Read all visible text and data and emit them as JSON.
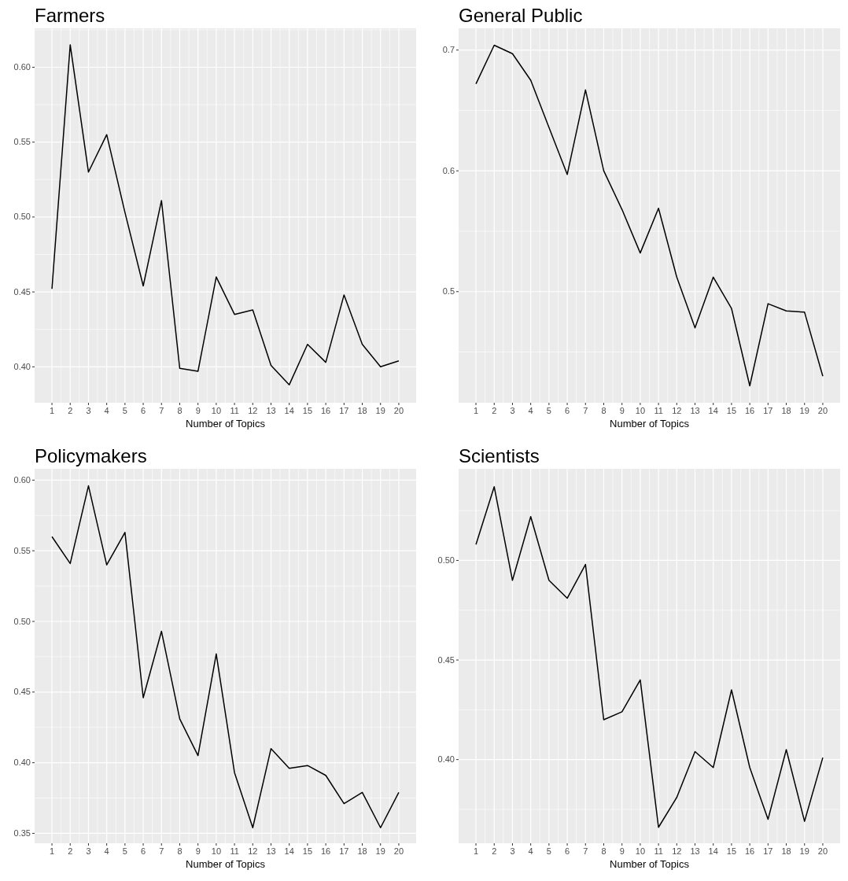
{
  "chart_data": [
    {
      "type": "line",
      "title": "Farmers",
      "xlabel": "Number of Topics",
      "x": [
        1,
        2,
        3,
        4,
        5,
        6,
        7,
        8,
        9,
        10,
        11,
        12,
        13,
        14,
        15,
        16,
        17,
        18,
        19,
        20
      ],
      "xlim": [
        0.05,
        20.95
      ],
      "xticks": [
        1,
        2,
        3,
        4,
        5,
        6,
        7,
        8,
        9,
        10,
        11,
        12,
        13,
        14,
        15,
        16,
        17,
        18,
        19,
        20
      ],
      "ylim": [
        0.376,
        0.626
      ],
      "yticks": [
        {
          "value": 0.4,
          "label": "0.40"
        },
        {
          "value": 0.45,
          "label": "0.45"
        },
        {
          "value": 0.5,
          "label": "0.50"
        },
        {
          "value": 0.55,
          "label": "0.55"
        },
        {
          "value": 0.6,
          "label": "0.60"
        }
      ],
      "grid": true,
      "line_style": "solid",
      "series": [
        {
          "color": "#000000",
          "values": [
            0.452,
            0.615,
            0.53,
            0.555,
            0.503,
            0.454,
            0.511,
            0.399,
            0.397,
            0.46,
            0.435,
            0.438,
            0.401,
            0.388,
            0.415,
            0.403,
            0.448,
            0.415,
            0.4,
            0.404
          ]
        }
      ]
    },
    {
      "type": "line",
      "title": "General Public",
      "xlabel": "Number of Topics",
      "x": [
        1,
        2,
        3,
        4,
        5,
        6,
        7,
        8,
        9,
        10,
        11,
        12,
        13,
        14,
        15,
        16,
        17,
        18,
        19,
        20
      ],
      "xlim": [
        0.05,
        20.95
      ],
      "xticks": [
        1,
        2,
        3,
        4,
        5,
        6,
        7,
        8,
        9,
        10,
        11,
        12,
        13,
        14,
        15,
        16,
        17,
        18,
        19,
        20
      ],
      "ylim": [
        0.408,
        0.718
      ],
      "yticks": [
        0.5,
        0.6,
        0.7
      ],
      "grid": true,
      "line_style": "solid",
      "series": [
        {
          "color": "#000000",
          "values": [
            0.672,
            0.704,
            0.697,
            0.675,
            0.636,
            0.597,
            0.667,
            0.6,
            0.568,
            0.532,
            0.569,
            0.512,
            0.47,
            0.512,
            0.486,
            0.422,
            0.49,
            0.484,
            0.483,
            0.43
          ]
        }
      ]
    },
    {
      "type": "line",
      "title": "Policymakers",
      "xlabel": "Number of Topics",
      "x": [
        1,
        2,
        3,
        4,
        5,
        6,
        7,
        8,
        9,
        10,
        11,
        12,
        13,
        14,
        15,
        16,
        17,
        18,
        19,
        20
      ],
      "xlim": [
        0.05,
        20.95
      ],
      "xticks": [
        1,
        2,
        3,
        4,
        5,
        6,
        7,
        8,
        9,
        10,
        11,
        12,
        13,
        14,
        15,
        16,
        17,
        18,
        19,
        20
      ],
      "ylim": [
        0.343,
        0.608
      ],
      "yticks": [
        {
          "value": 0.35,
          "label": "0.35"
        },
        {
          "value": 0.4,
          "label": "0.40"
        },
        {
          "value": 0.45,
          "label": "0.45"
        },
        {
          "value": 0.5,
          "label": "0.50"
        },
        {
          "value": 0.55,
          "label": "0.55"
        },
        {
          "value": 0.6,
          "label": "0.60"
        }
      ],
      "grid": true,
      "line_style": "solid",
      "series": [
        {
          "color": "#000000",
          "values": [
            0.56,
            0.541,
            0.596,
            0.54,
            0.563,
            0.446,
            0.493,
            0.431,
            0.405,
            0.477,
            0.393,
            0.354,
            0.41,
            0.396,
            0.398,
            0.391,
            0.371,
            0.379,
            0.354,
            0.379
          ]
        }
      ]
    },
    {
      "type": "line",
      "title": "Scientists",
      "xlabel": "Number of Topics",
      "x": [
        1,
        2,
        3,
        4,
        5,
        6,
        7,
        8,
        9,
        10,
        11,
        12,
        13,
        14,
        15,
        16,
        17,
        18,
        19,
        20
      ],
      "xlim": [
        0.05,
        20.95
      ],
      "xticks": [
        1,
        2,
        3,
        4,
        5,
        6,
        7,
        8,
        9,
        10,
        11,
        12,
        13,
        14,
        15,
        16,
        17,
        18,
        19,
        20
      ],
      "ylim": [
        0.358,
        0.546
      ],
      "yticks": [
        {
          "value": 0.4,
          "label": "0.40"
        },
        {
          "value": 0.45,
          "label": "0.45"
        },
        {
          "value": 0.5,
          "label": "0.50"
        }
      ],
      "grid": true,
      "line_style": "solid",
      "series": [
        {
          "color": "#000000",
          "values": [
            0.508,
            0.537,
            0.49,
            0.522,
            0.49,
            0.481,
            0.498,
            0.42,
            0.424,
            0.44,
            0.366,
            0.381,
            0.404,
            0.396,
            0.435,
            0.396,
            0.37,
            0.405,
            0.369,
            0.401
          ]
        }
      ]
    }
  ]
}
